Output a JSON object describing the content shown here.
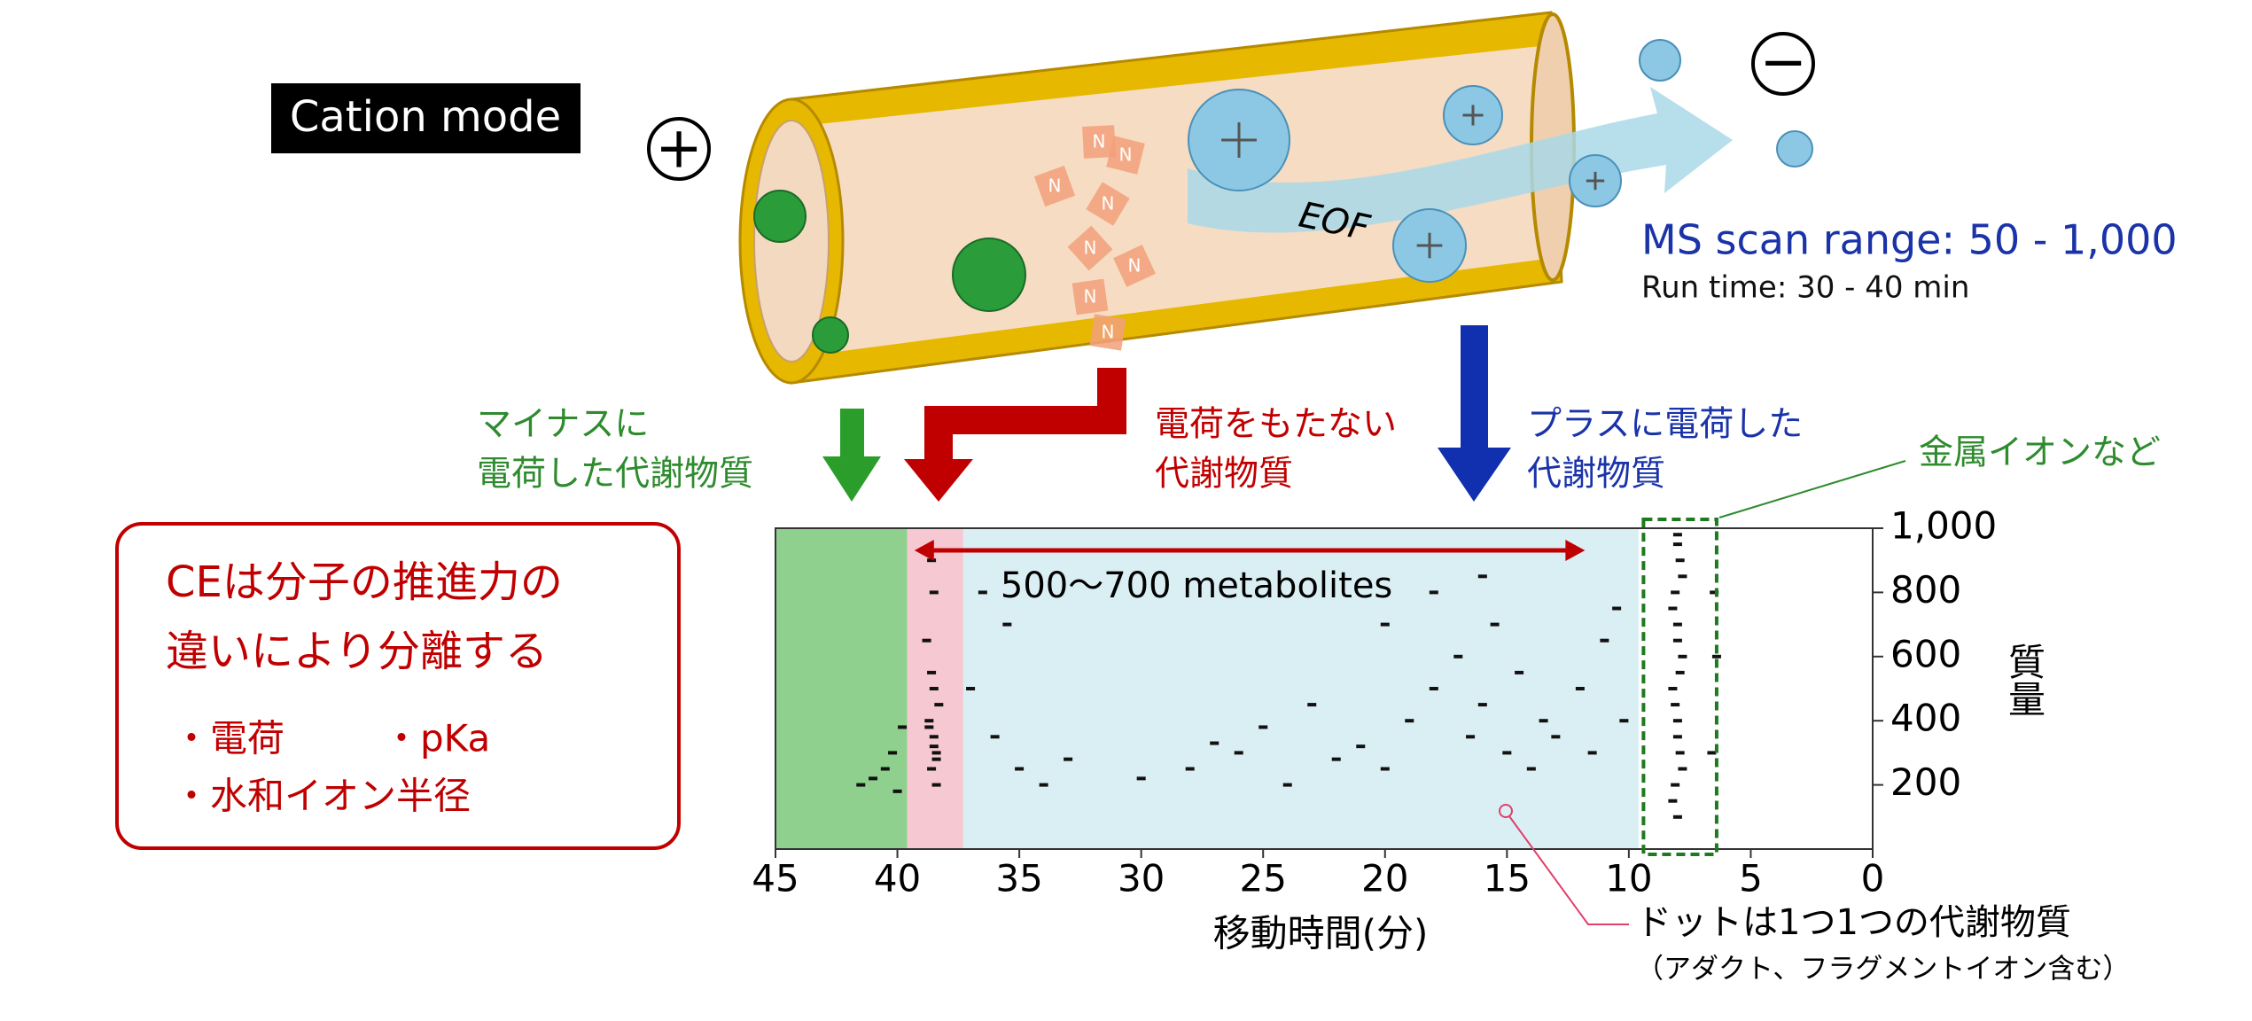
{
  "mode_label": "Cation mode",
  "anode_symbol": "+",
  "cathode_symbol": "−",
  "molecule_label": "N",
  "eof_label": "EOF",
  "ms_scan_range": "MS scan range: 50 - 1,000",
  "run_time": "Run time: 30 - 40 min",
  "arrow_labels": {
    "negative": [
      "マイナスに",
      "電荷した代謝物質"
    ],
    "neutral": [
      "電荷をもたない",
      "代謝物質"
    ],
    "positive": [
      "プラスに電荷した",
      "代謝物質"
    ],
    "metal": "金属イオンなど"
  },
  "info_box": {
    "lines": [
      "CEは分子の推進力の",
      "違いにより分離する"
    ],
    "items": [
      "・電荷",
      "・pKa",
      "・水和イオン半径"
    ]
  },
  "callout": [
    "ドットは1つ1つの代謝物質",
    "（アダクト、フラグメントイオン含む）"
  ],
  "chart_data": {
    "type": "scatter",
    "x_label": "移動時間(分)",
    "y_label": "質量",
    "xlim": [
      45,
      0
    ],
    "ylim": [
      0,
      1000
    ],
    "xticks": [
      45,
      40,
      35,
      30,
      25,
      20,
      15,
      10,
      5,
      0
    ],
    "yticks": [
      200,
      400,
      600,
      800,
      {
        "value": 1000,
        "label": "1,000"
      }
    ],
    "regions": [
      {
        "from": 45,
        "to": 39.6,
        "color": "#8fd08f"
      },
      {
        "from": 39.6,
        "to": 37.3,
        "color": "#f6c8d2"
      },
      {
        "from": 37.3,
        "to": 9.6,
        "color": "#daeff4"
      }
    ],
    "highlight": {
      "from": 9.4,
      "to": 6.4,
      "color": "#1e7a1e"
    },
    "range_arrow": {
      "from": 39.3,
      "to": 11.8,
      "label": "500〜700 metabolites",
      "color": "#c00000"
    },
    "series": [
      {
        "color": "#111111",
        "x": [
          38.6,
          38.4,
          38.5,
          38.7,
          38.3,
          38.5,
          38.6,
          38.4,
          38.8,
          38.5,
          38.6,
          38.4,
          38.5,
          38.7,
          40.5,
          41,
          40.2,
          41.5,
          39.8,
          40,
          36,
          35,
          34,
          33,
          30,
          28,
          26,
          24,
          22,
          21,
          20,
          19,
          18,
          17,
          16.5,
          16,
          15.5,
          15,
          14.5,
          14,
          13.5,
          13,
          12,
          11.5,
          11,
          10.5,
          10.2,
          18,
          16,
          20,
          23,
          25,
          27,
          35.5,
          36.5,
          37,
          8.0,
          8.1,
          7.9,
          8.0,
          8.2,
          7.8,
          8.0,
          8.1,
          7.9,
          8.0,
          8.2,
          7.8,
          8.0,
          8.1,
          7.9,
          8.0,
          8.2,
          7.8,
          8.0,
          6.6,
          6.4,
          6.5
        ],
        "values": [
          250,
          300,
          350,
          400,
          450,
          500,
          550,
          200,
          650,
          800,
          900,
          280,
          320,
          380,
          250,
          220,
          300,
          200,
          380,
          180,
          350,
          250,
          200,
          280,
          220,
          250,
          300,
          200,
          280,
          320,
          250,
          400,
          500,
          600,
          350,
          450,
          700,
          300,
          550,
          250,
          400,
          350,
          500,
          300,
          650,
          750,
          400,
          800,
          850,
          700,
          450,
          380,
          330,
          700,
          800,
          500,
          100,
          200,
          300,
          400,
          500,
          600,
          700,
          800,
          900,
          980,
          150,
          250,
          350,
          450,
          550,
          650,
          750,
          850,
          950,
          300,
          600,
          800
        ]
      }
    ]
  }
}
